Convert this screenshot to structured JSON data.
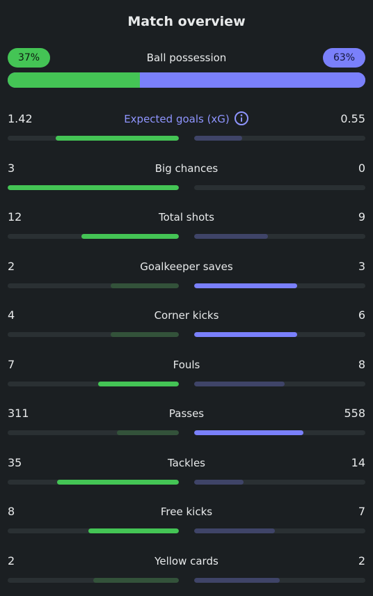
{
  "title": "Match overview",
  "possession": {
    "label": "Ball possession",
    "home": "37%",
    "away": "63%",
    "home_fraction": 0.37
  },
  "colors": {
    "home": "#44c455",
    "away": "#7a80fb",
    "accent_label": "#8f95ff",
    "background": "#1b1f22"
  },
  "stats": [
    {
      "label": "Expected goals (xG)",
      "home": "1.42",
      "away": "0.55",
      "home_fraction": 0.72,
      "away_fraction": 0.28,
      "home_winner": true,
      "away_winner": false,
      "accent": true,
      "icon": "info-icon"
    },
    {
      "label": "Big chances",
      "home": "3",
      "away": "0",
      "home_fraction": 1.0,
      "away_fraction": 0.0,
      "home_winner": true,
      "away_winner": false
    },
    {
      "label": "Total shots",
      "home": "12",
      "away": "9",
      "home_fraction": 0.57,
      "away_fraction": 0.43,
      "home_winner": true,
      "away_winner": false
    },
    {
      "label": "Goalkeeper saves",
      "home": "2",
      "away": "3",
      "home_fraction": 0.4,
      "away_fraction": 0.6,
      "home_winner": false,
      "away_winner": true
    },
    {
      "label": "Corner kicks",
      "home": "4",
      "away": "6",
      "home_fraction": 0.4,
      "away_fraction": 0.6,
      "home_winner": false,
      "away_winner": true
    },
    {
      "label": "Fouls",
      "home": "7",
      "away": "8",
      "home_fraction": 0.47,
      "away_fraction": 0.53,
      "home_winner": true,
      "away_winner": false
    },
    {
      "label": "Passes",
      "home": "311",
      "away": "558",
      "home_fraction": 0.36,
      "away_fraction": 0.64,
      "home_winner": false,
      "away_winner": true
    },
    {
      "label": "Tackles",
      "home": "35",
      "away": "14",
      "home_fraction": 0.71,
      "away_fraction": 0.29,
      "home_winner": true,
      "away_winner": false
    },
    {
      "label": "Free kicks",
      "home": "8",
      "away": "7",
      "home_fraction": 0.53,
      "away_fraction": 0.47,
      "home_winner": true,
      "away_winner": false
    },
    {
      "label": "Yellow cards",
      "home": "2",
      "away": "2",
      "home_fraction": 0.5,
      "away_fraction": 0.5,
      "home_winner": false,
      "away_winner": false
    }
  ]
}
